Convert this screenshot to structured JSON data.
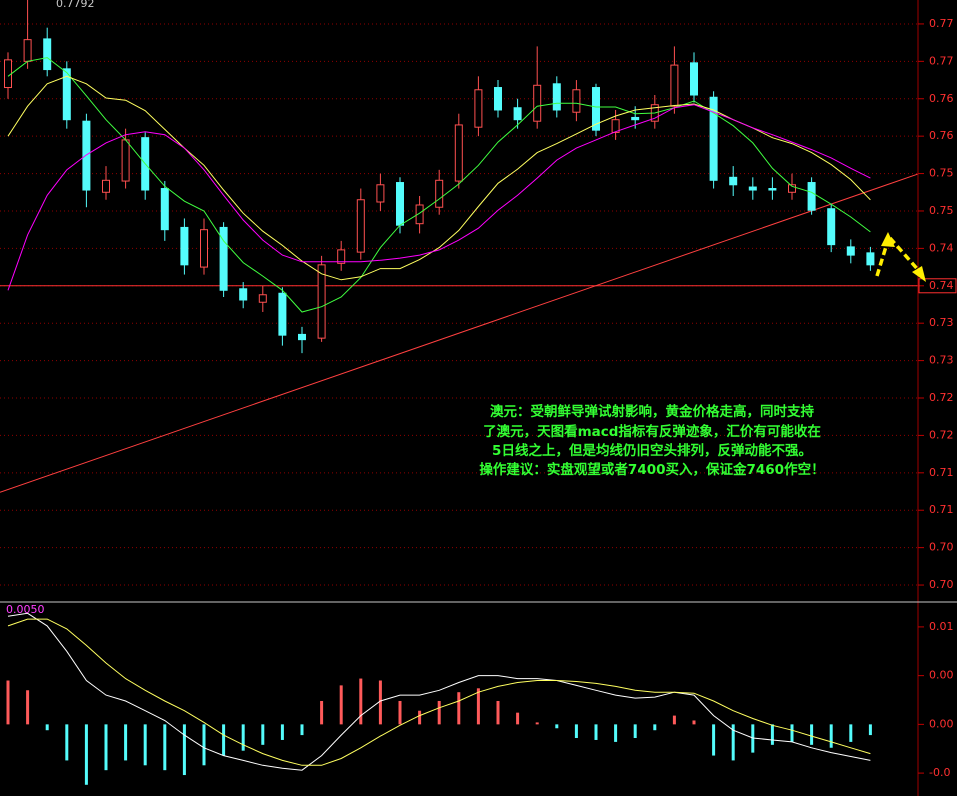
{
  "chart_data": [
    {
      "type": "candlestick",
      "max_label": "0.7792",
      "ylim": [
        0.698,
        0.7782
      ],
      "yticks": [
        {
          "value": 0.775,
          "label": "0.77"
        },
        0.77,
        {
          "value": 0.765,
          "label": "0.76"
        },
        0.76,
        {
          "value": 0.755,
          "label": "0.75"
        },
        0.75,
        {
          "value": 0.745,
          "label": "0.74"
        },
        0.74,
        {
          "value": 0.735,
          "label": "0.73"
        },
        0.73,
        {
          "value": 0.725,
          "label": "0.72"
        },
        0.72,
        {
          "value": 0.715,
          "label": "0.71"
        },
        0.71,
        {
          "value": 0.705,
          "label": "0.70"
        },
        {
          "value": 0.7,
          "label": "0.70"
        }
      ],
      "grid": true,
      "up_color": "#ff5050",
      "down_color": "#54fcfc",
      "open": [
        0.7665,
        0.77,
        0.773,
        0.769,
        0.762,
        0.7525,
        0.754,
        0.7598,
        0.753,
        0.7478,
        0.7425,
        0.7478,
        0.7396,
        0.7378,
        0.739,
        0.7335,
        0.733,
        0.743,
        0.7445,
        0.7512,
        0.7538,
        0.7483,
        0.7505,
        0.754,
        0.7612,
        0.7665,
        0.7638,
        0.762,
        0.767,
        0.7632,
        0.7665,
        0.7605,
        0.7625,
        0.762,
        0.764,
        0.7698,
        0.7652,
        0.7545,
        0.7532,
        0.753,
        0.7525,
        0.7538,
        0.7503,
        0.7452,
        0.7444
      ],
      "high": [
        0.7712,
        0.7792,
        0.7745,
        0.77,
        0.763,
        0.756,
        0.761,
        0.7605,
        0.754,
        0.749,
        0.749,
        0.7485,
        0.7405,
        0.74,
        0.7398,
        0.7345,
        0.744,
        0.746,
        0.753,
        0.755,
        0.7545,
        0.752,
        0.7555,
        0.763,
        0.768,
        0.7675,
        0.765,
        0.772,
        0.768,
        0.7675,
        0.767,
        0.7635,
        0.764,
        0.7655,
        0.772,
        0.7712,
        0.766,
        0.756,
        0.7545,
        0.7545,
        0.755,
        0.7545,
        0.751,
        0.7462,
        0.7452
      ],
      "low": [
        0.765,
        0.769,
        0.768,
        0.761,
        0.7505,
        0.7515,
        0.753,
        0.7515,
        0.746,
        0.7415,
        0.7415,
        0.7385,
        0.737,
        0.7365,
        0.732,
        0.731,
        0.7325,
        0.742,
        0.7435,
        0.75,
        0.747,
        0.747,
        0.7495,
        0.753,
        0.76,
        0.7625,
        0.761,
        0.761,
        0.7625,
        0.762,
        0.76,
        0.7595,
        0.761,
        0.761,
        0.763,
        0.7645,
        0.753,
        0.752,
        0.7515,
        0.7515,
        0.7515,
        0.7495,
        0.7445,
        0.743,
        0.742
      ],
      "close": [
        0.7702,
        0.7729,
        0.7689,
        0.7622,
        0.7528,
        0.7541,
        0.7595,
        0.7528,
        0.7475,
        0.7428,
        0.7475,
        0.7394,
        0.7381,
        0.7388,
        0.7334,
        0.7328,
        0.7428,
        0.7448,
        0.7515,
        0.7535,
        0.7481,
        0.7508,
        0.7541,
        0.7615,
        0.7662,
        0.7635,
        0.7622,
        0.7668,
        0.7635,
        0.7662,
        0.7608,
        0.7622,
        0.7622,
        0.7642,
        0.7695,
        0.7655,
        0.7541,
        0.7535,
        0.7528,
        0.7528,
        0.7535,
        0.7501,
        0.7455,
        0.7441,
        0.7428
      ],
      "moving_averages": [
        {
          "color": "#40ff40",
          "values": [
            0.768,
            0.77,
            0.7705,
            0.7685,
            0.7654,
            0.7622,
            0.7595,
            0.7563,
            0.7533,
            0.7513,
            0.75,
            0.746,
            0.7431,
            0.7413,
            0.7394,
            0.7365,
            0.7372,
            0.7385,
            0.7411,
            0.7451,
            0.7481,
            0.7497,
            0.7516,
            0.7536,
            0.7561,
            0.7592,
            0.7615,
            0.764,
            0.7644,
            0.7644,
            0.7639,
            0.7639,
            0.763,
            0.7631,
            0.7638,
            0.7647,
            0.7631,
            0.7614,
            0.7591,
            0.7557,
            0.7533,
            0.7525,
            0.7509,
            0.7492,
            0.7472
          ]
        },
        {
          "color": "#ffff60",
          "values": [
            0.76,
            0.764,
            0.767,
            0.768,
            0.767,
            0.7651,
            0.7648,
            0.7634,
            0.7609,
            0.7584,
            0.7561,
            0.7528,
            0.7497,
            0.7473,
            0.7454,
            0.7433,
            0.7416,
            0.7408,
            0.7412,
            0.7423,
            0.7423,
            0.7435,
            0.7451,
            0.7474,
            0.7506,
            0.7537,
            0.7556,
            0.7578,
            0.759,
            0.7603,
            0.7616,
            0.7627,
            0.7635,
            0.7638,
            0.7641,
            0.7643,
            0.7635,
            0.7622,
            0.7611,
            0.7598,
            0.759,
            0.7578,
            0.7562,
            0.7542,
            0.7515
          ]
        },
        {
          "color": "#ff00ff",
          "values": [
            0.7394,
            0.7468,
            0.7521,
            0.7555,
            0.7575,
            0.7591,
            0.7602,
            0.7606,
            0.7602,
            0.7584,
            0.7555,
            0.7521,
            0.7488,
            0.7461,
            0.7441,
            0.7432,
            0.7432,
            0.7432,
            0.7432,
            0.7434,
            0.7437,
            0.7441,
            0.7448,
            0.7461,
            0.7477,
            0.7501,
            0.7521,
            0.7544,
            0.7568,
            0.7584,
            0.7595,
            0.7606,
            0.7615,
            0.7624,
            0.7638,
            0.7642,
            0.7632,
            0.7622,
            0.7611,
            0.7602,
            0.7592,
            0.7582,
            0.7571,
            0.7557,
            0.7544
          ]
        }
      ],
      "trendline": [
        0.7124,
        0.7555
      ],
      "support_line": 0.74,
      "annotation": [
        "澳元：受朝鲜导弹试射影响，黄金价格走高，同时支持",
        "了澳元，天图看macd指标有反弹迹象，汇价有可能收在",
        "5日线之上，但是均线仍旧空头排列，反弹动能不强。",
        "操作建议：实盘观望或者7400买入，保证金7460作空！"
      ]
    },
    {
      "type": "macd",
      "top_label": "0.0050",
      "ylim": [
        -0.00735,
        0.01235
      ],
      "yticks": [
        0.01,
        {
          "value": 0.005,
          "label": "0.00"
        },
        {
          "value": 0,
          "label": "0.00"
        },
        {
          "value": -0.005,
          "label": "-0.0"
        }
      ],
      "up_color": "#ff5a5a",
      "down_color": "#54fcfc",
      "histogram": [
        0.0045,
        0.0035,
        -0.0006,
        -0.0037,
        -0.0062,
        -0.0047,
        -0.0037,
        -0.0042,
        -0.0047,
        -0.0052,
        -0.0042,
        -0.0032,
        -0.0027,
        -0.0021,
        -0.0016,
        -0.0011,
        0.0024,
        0.004,
        0.0047,
        0.0045,
        0.0024,
        0.0014,
        0.0024,
        0.0033,
        0.0037,
        0.0024,
        0.0012,
        0.0002,
        -0.0004,
        -0.0014,
        -0.0016,
        -0.0018,
        -0.0014,
        -0.0006,
        0.0009,
        0.0004,
        -0.0032,
        -0.0037,
        -0.0029,
        -0.0021,
        -0.0018,
        -0.0021,
        -0.0024,
        -0.0018,
        -0.0011
      ],
      "lines": [
        {
          "color": "#ffffff",
          "values": [
            0.0111,
            0.0114,
            0.0101,
            0.0075,
            0.0045,
            0.003,
            0.0024,
            0.0014,
            0.0004,
            -0.0011,
            -0.0024,
            -0.0032,
            -0.0037,
            -0.0042,
            -0.0045,
            -0.0047,
            -0.0032,
            -0.0011,
            0.0009,
            0.0024,
            0.003,
            0.003,
            0.0035,
            0.0043,
            0.005,
            0.005,
            0.0047,
            0.0047,
            0.0045,
            0.004,
            0.0035,
            0.003,
            0.0027,
            0.0028,
            0.0033,
            0.003,
            0.0009,
            -0.0006,
            -0.0014,
            -0.0016,
            -0.0018,
            -0.0024,
            -0.0029,
            -0.0033,
            -0.0037
          ]
        },
        {
          "color": "#ffff60",
          "values": [
            0.0101,
            0.0108,
            0.0108,
            0.0098,
            0.0081,
            0.0063,
            0.0047,
            0.0035,
            0.0024,
            0.0014,
            0.0002,
            -0.0011,
            -0.0021,
            -0.003,
            -0.0037,
            -0.0042,
            -0.0042,
            -0.0035,
            -0.0024,
            -0.0012,
            -0.0001,
            0.0009,
            0.0017,
            0.0024,
            0.0033,
            0.0039,
            0.0043,
            0.0045,
            0.0045,
            0.0044,
            0.0042,
            0.0039,
            0.0035,
            0.0033,
            0.0033,
            0.0032,
            0.0024,
            0.0014,
            0.0006,
            -0.0001,
            -0.0006,
            -0.0012,
            -0.0018,
            -0.0024,
            -0.003
          ]
        }
      ]
    }
  ]
}
